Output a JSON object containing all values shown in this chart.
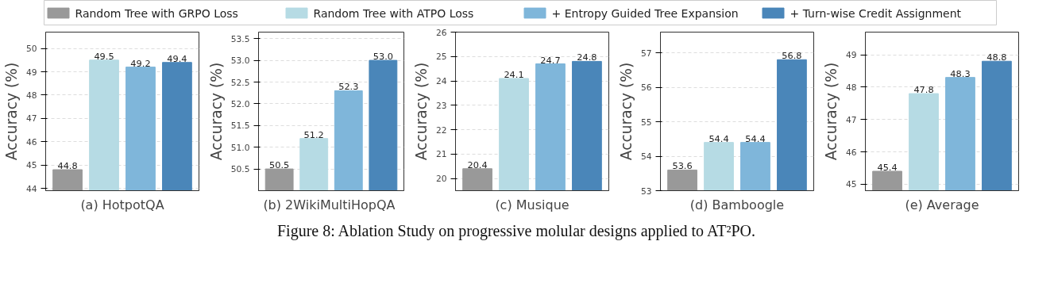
{
  "chart_data": [
    {
      "type": "bar",
      "xlabel": "(a) HotpotQA",
      "ylabel": "Accuracy (%)",
      "categories": [
        null
      ],
      "legend": "top",
      "grid": "y",
      "tick_labels": "y",
      "data_labels": true,
      "series": [
        {
          "name": "Random Tree with GRPO Loss",
          "color": "#999999",
          "values": [
            44.8
          ]
        },
        {
          "name": "Random Tree with ATPO Loss",
          "color": "#b6dbe4",
          "values": [
            49.5
          ]
        },
        {
          "name": "+ Entropy Guided Tree Expansion",
          "color": "#7fb6da",
          "values": [
            49.2
          ]
        },
        {
          "name": "+ Turn-wise Credit Assignment",
          "color": "#4a86b9",
          "values": [
            49.4
          ]
        }
      ],
      "ylim": [
        43.9,
        50.7
      ],
      "yticks": [
        44,
        45,
        46,
        47,
        48,
        49,
        50
      ],
      "annotations": [
        "Figure 8: Ablation Study on progressive molular designs applied to AT²PO."
      ]
    },
    {
      "type": "bar",
      "xlabel": "(b)  2WikiMultiHopQA",
      "ylabel": "Accuracy (%)",
      "categories": [
        null
      ],
      "grid": "y",
      "tick_labels": "y",
      "data_labels": true,
      "series": [
        {
          "color": "#999999",
          "values": [
            50.5
          ]
        },
        {
          "color": "#b6dbe4",
          "values": [
            51.2
          ]
        },
        {
          "color": "#7fb6da",
          "values": [
            52.3
          ]
        },
        {
          "color": "#4a86b9",
          "values": [
            53.0
          ],
          "value_labels": [
            "53.0"
          ]
        }
      ],
      "ylim": [
        50.0,
        53.65
      ],
      "yticks": [
        50.5,
        {
          "value": 51.0,
          "label": "51.0"
        },
        51.5,
        {
          "value": 52.0,
          "label": "52.0"
        },
        52.5,
        {
          "value": 53.0,
          "label": "53.0"
        },
        53.5
      ]
    },
    {
      "type": "bar",
      "xlabel": "(c) Musique",
      "ylabel": "Accuracy (%)",
      "categories": [
        null
      ],
      "grid": "y",
      "tick_labels": "y",
      "data_labels": true,
      "series": [
        {
          "color": "#999999",
          "values": [
            20.4
          ]
        },
        {
          "color": "#b6dbe4",
          "values": [
            24.1
          ]
        },
        {
          "color": "#7fb6da",
          "values": [
            24.7
          ]
        },
        {
          "color": "#4a86b9",
          "values": [
            24.8
          ]
        }
      ],
      "ylim": [
        19.5,
        26.0
      ],
      "yticks": [
        20,
        21,
        22,
        23,
        24,
        25,
        26
      ]
    },
    {
      "type": "bar",
      "xlabel": "(d) Bamboogle",
      "ylabel": "Accuracy (%)",
      "categories": [
        null
      ],
      "grid": "y",
      "tick_labels": "y",
      "data_labels": true,
      "series": [
        {
          "color": "#999999",
          "values": [
            53.6
          ]
        },
        {
          "color": "#b6dbe4",
          "values": [
            54.4
          ]
        },
        {
          "color": "#7fb6da",
          "values": [
            54.4
          ]
        },
        {
          "color": "#4a86b9",
          "values": [
            56.8
          ]
        }
      ],
      "ylim": [
        53.0,
        57.6
      ],
      "yticks": [
        53,
        54,
        55,
        56,
        57
      ]
    },
    {
      "type": "bar",
      "xlabel": "(e) Average",
      "ylabel": "Accuracy (%)",
      "categories": [
        null
      ],
      "grid": "y",
      "tick_labels": "y",
      "data_labels": true,
      "series": [
        {
          "color": "#999999",
          "values": [
            45.4
          ]
        },
        {
          "color": "#b6dbe4",
          "values": [
            47.8
          ]
        },
        {
          "color": "#7fb6da",
          "values": [
            48.3
          ]
        },
        {
          "color": "#4a86b9",
          "values": [
            48.8
          ]
        }
      ],
      "ylim": [
        44.8,
        49.7
      ],
      "yticks": [
        45,
        46,
        47,
        48,
        49
      ]
    }
  ]
}
